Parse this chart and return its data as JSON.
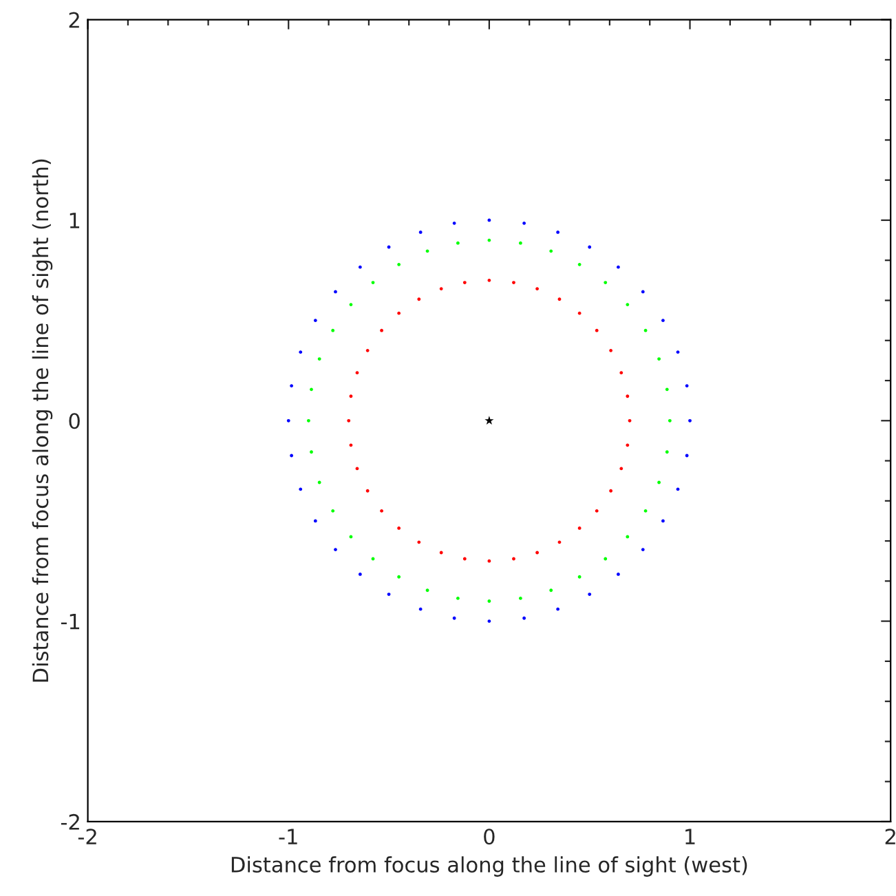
{
  "chart_data": {
    "type": "scatter",
    "xlabel": "Distance from focus along the line of sight (west)",
    "ylabel": "Distance from focus along the line of sight (north)",
    "xlim": [
      -2,
      2
    ],
    "ylim": [
      -2,
      2
    ],
    "xticks": [
      -2,
      {
        "value": -1.8,
        "label": null
      },
      {
        "value": -1.6,
        "label": null
      },
      {
        "value": -1.4,
        "label": null
      },
      {
        "value": -1.2,
        "label": null
      },
      -1,
      {
        "value": -0.8,
        "label": null
      },
      {
        "value": -0.6,
        "label": null
      },
      {
        "value": -0.4,
        "label": null
      },
      {
        "value": -0.2,
        "label": null
      },
      0,
      {
        "value": 0.2,
        "label": null
      },
      {
        "value": 0.4,
        "label": null
      },
      {
        "value": 0.6,
        "label": null
      },
      {
        "value": 0.8,
        "label": null
      },
      1,
      {
        "value": 1.2,
        "label": null
      },
      {
        "value": 1.4,
        "label": null
      },
      {
        "value": 1.6,
        "label": null
      },
      {
        "value": 1.8,
        "label": null
      },
      2
    ],
    "yticks": [
      -2,
      {
        "value": -1.8,
        "label": null
      },
      {
        "value": -1.6,
        "label": null
      },
      {
        "value": -1.4,
        "label": null
      },
      {
        "value": -1.2,
        "label": null
      },
      -1,
      {
        "value": -0.8,
        "label": null
      },
      {
        "value": -0.6,
        "label": null
      },
      {
        "value": -0.4,
        "label": null
      },
      {
        "value": -0.2,
        "label": null
      },
      0,
      {
        "value": 0.2,
        "label": null
      },
      {
        "value": 0.4,
        "label": null
      },
      {
        "value": 0.6,
        "label": null
      },
      {
        "value": 0.8,
        "label": null
      },
      1,
      {
        "value": 1.2,
        "label": null
      },
      {
        "value": 1.4,
        "label": null
      },
      {
        "value": 1.6,
        "label": null
      },
      {
        "value": 1.8,
        "label": null
      },
      2
    ],
    "grid": false,
    "series": [
      {
        "color": "#0000ff",
        "marker": "circle",
        "x": [
          1,
          0.985,
          0.94,
          0.866,
          0.766,
          0.643,
          0.5,
          0.342,
          0.174,
          0,
          -0.174,
          -0.342,
          -0.5,
          -0.643,
          -0.766,
          -0.866,
          -0.94,
          -0.985,
          -1,
          -0.985,
          -0.94,
          -0.866,
          -0.766,
          -0.643,
          -0.5,
          -0.342,
          -0.174,
          0,
          0.174,
          0.342,
          0.5,
          0.643,
          0.766,
          0.866,
          0.94,
          0.985
        ],
        "values": [
          0,
          0.174,
          0.342,
          0.5,
          0.643,
          0.766,
          0.866,
          0.94,
          0.985,
          1,
          0.985,
          0.94,
          0.866,
          0.766,
          0.643,
          0.5,
          0.342,
          0.174,
          0,
          -0.174,
          -0.342,
          -0.5,
          -0.643,
          -0.766,
          -0.866,
          -0.94,
          -0.985,
          -1,
          -0.985,
          -0.94,
          -0.866,
          -0.766,
          -0.643,
          -0.5,
          -0.342,
          -0.174
        ]
      },
      {
        "color": "#00ff00",
        "marker": "circle",
        "x": [
          0.9,
          0.886,
          0.846,
          0.779,
          0.689,
          0.579,
          0.45,
          0.308,
          0.156,
          0,
          -0.156,
          -0.308,
          -0.45,
          -0.579,
          -0.689,
          -0.779,
          -0.846,
          -0.886,
          -0.9,
          -0.886,
          -0.846,
          -0.779,
          -0.689,
          -0.579,
          -0.45,
          -0.308,
          -0.156,
          0,
          0.156,
          0.308,
          0.45,
          0.579,
          0.689,
          0.779,
          0.846,
          0.886
        ],
        "values": [
          0,
          0.156,
          0.308,
          0.45,
          0.579,
          0.689,
          0.779,
          0.846,
          0.886,
          0.9,
          0.886,
          0.846,
          0.779,
          0.689,
          0.579,
          0.45,
          0.308,
          0.156,
          0,
          -0.156,
          -0.308,
          -0.45,
          -0.579,
          -0.689,
          -0.779,
          -0.846,
          -0.886,
          -0.9,
          -0.886,
          -0.846,
          -0.779,
          -0.689,
          -0.579,
          -0.45,
          -0.308,
          -0.156
        ]
      },
      {
        "color": "#ff0000",
        "marker": "circle",
        "x": [
          0.7,
          0.689,
          0.658,
          0.606,
          0.536,
          0.45,
          0.35,
          0.239,
          0.122,
          0,
          -0.122,
          -0.239,
          -0.35,
          -0.45,
          -0.536,
          -0.606,
          -0.658,
          -0.689,
          -0.7,
          -0.689,
          -0.658,
          -0.606,
          -0.536,
          -0.45,
          -0.35,
          -0.239,
          -0.122,
          0,
          0.122,
          0.239,
          0.35,
          0.45,
          0.536,
          0.606,
          0.658,
          0.689
        ],
        "values": [
          0,
          0.122,
          0.239,
          0.35,
          0.45,
          0.536,
          0.606,
          0.658,
          0.689,
          0.7,
          0.689,
          0.658,
          0.606,
          0.536,
          0.45,
          0.35,
          0.239,
          0.122,
          0,
          -0.122,
          -0.239,
          -0.35,
          -0.45,
          -0.536,
          -0.606,
          -0.658,
          -0.689,
          -0.7,
          -0.689,
          -0.658,
          -0.606,
          -0.536,
          -0.45,
          -0.35,
          -0.239,
          -0.122
        ]
      },
      {
        "color": "#000000",
        "marker": "star",
        "x": [
          0
        ],
        "values": [
          0
        ]
      }
    ]
  }
}
